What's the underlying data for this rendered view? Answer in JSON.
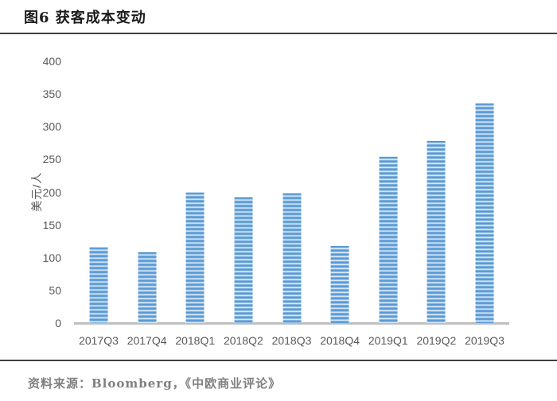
{
  "header": {
    "title": "图6 获客成本变动"
  },
  "footer": {
    "source": "资料来源：Bloomberg，《中欧商业评论》"
  },
  "chart_data": {
    "type": "bar",
    "title": "图6 获客成本变动",
    "categories": [
      "2017Q3",
      "2017Q4",
      "2018Q1",
      "2018Q2",
      "2018Q3",
      "2018Q4",
      "2019Q1",
      "2019Q2",
      "2019Q3"
    ],
    "values": [
      115,
      108,
      199,
      192,
      198,
      118,
      254,
      278,
      336
    ],
    "xlabel": "",
    "ylabel": "美元/人",
    "ylim": [
      0,
      400
    ],
    "yticks": [
      0,
      50,
      100,
      150,
      200,
      250,
      300,
      350,
      400
    ],
    "grid": false,
    "legend": "none",
    "bar_fill_style": "horizontal-stripes",
    "source": "资料来源：Bloomberg，《中欧商业评论》",
    "colors": {
      "bar_main": "#5B9BD5",
      "bar_mid": "#A9CBEA",
      "bar_light": "#EDF5FC",
      "axis_line": "#BFBFBF",
      "tick_text": "#595959",
      "rule": "#3F3F3F",
      "title_text": "#1A1A1A",
      "source_text": "#808080"
    }
  }
}
